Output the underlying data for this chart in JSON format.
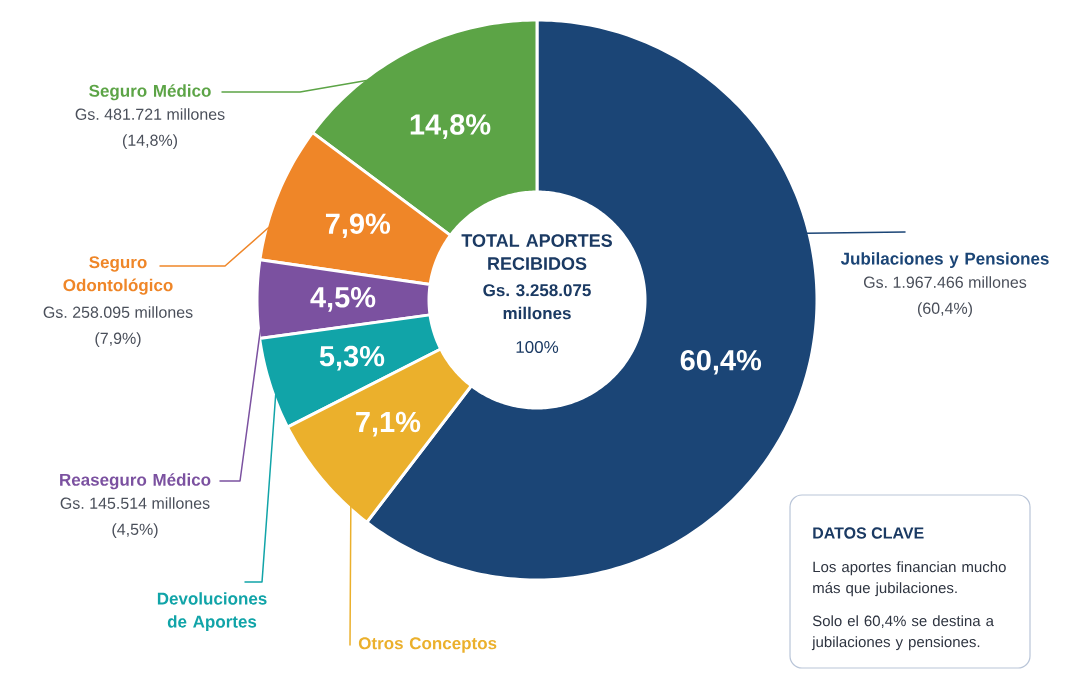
{
  "chart_data": [
    {
      "type": "donut",
      "title": "TOTAL APORTES RECIBIDOS",
      "subtitle": "Gs. 3.258.075 millones",
      "categories": [
        "Jubilaciones y Pensiones",
        "Seguro Médico",
        "Seguro Odontológico",
        "Reaseguro Médico",
        "Devoluciones de Aportes",
        "Otros Conceptos"
      ],
      "values": [
        60.4,
        14.8,
        7.9,
        4.5,
        5.3,
        7.1
      ],
      "value_labels": [
        "60,4%",
        "14,8%",
        "7,9%",
        "4,5%",
        "5,3%",
        "7,1%"
      ],
      "colors": [
        "#1b4576",
        "#5ca446",
        "#ef8628",
        "#7b51a0",
        "#11a4a8",
        "#ebb02c"
      ],
      "annotations": [
        "100%",
        "Gs. 1.967.466 millones",
        "(60,4%)",
        "Gs. 481.721 millones",
        "(14,8%)",
        "Gs. 258.095 millones",
        "(7,9%)",
        "Gs. 145.514 millones",
        "(4,5%)"
      ]
    },
    {
      "type": "other",
      "title": "DATOS CLAVE",
      "annotations": [
        "Los aportes financian mucho más que jubilaciones.",
        "Solo el 60,4% se destina a jubilaciones y pensiones."
      ]
    }
  ]
}
